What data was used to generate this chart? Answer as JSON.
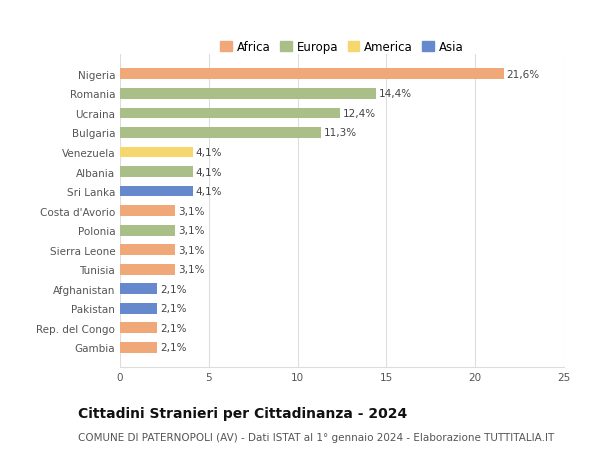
{
  "countries": [
    "Nigeria",
    "Romania",
    "Ucraina",
    "Bulgaria",
    "Venezuela",
    "Albania",
    "Sri Lanka",
    "Costa d'Avorio",
    "Polonia",
    "Sierra Leone",
    "Tunisia",
    "Afghanistan",
    "Pakistan",
    "Rep. del Congo",
    "Gambia"
  ],
  "values": [
    21.6,
    14.4,
    12.4,
    11.3,
    4.1,
    4.1,
    4.1,
    3.1,
    3.1,
    3.1,
    3.1,
    2.1,
    2.1,
    2.1,
    2.1
  ],
  "labels": [
    "21,6%",
    "14,4%",
    "12,4%",
    "11,3%",
    "4,1%",
    "4,1%",
    "4,1%",
    "3,1%",
    "3,1%",
    "3,1%",
    "3,1%",
    "2,1%",
    "2,1%",
    "2,1%",
    "2,1%"
  ],
  "continents": [
    "Africa",
    "Europa",
    "Europa",
    "Europa",
    "America",
    "Europa",
    "Asia",
    "Africa",
    "Europa",
    "Africa",
    "Africa",
    "Asia",
    "Asia",
    "Africa",
    "Africa"
  ],
  "continent_colors": {
    "Africa": "#F0A878",
    "Europa": "#AABF88",
    "America": "#F5D76E",
    "Asia": "#6688CC"
  },
  "legend_order": [
    "Africa",
    "Europa",
    "America",
    "Asia"
  ],
  "title": "Cittadini Stranieri per Cittadinanza - 2024",
  "subtitle": "COMUNE DI PATERNOPOLI (AV) - Dati ISTAT al 1° gennaio 2024 - Elaborazione TUTTITALIA.IT",
  "xlim": [
    0,
    25
  ],
  "xticks": [
    0,
    5,
    10,
    15,
    20,
    25
  ],
  "bg_color": "#ffffff",
  "grid_color": "#dddddd",
  "title_fontsize": 10,
  "subtitle_fontsize": 7.5,
  "label_fontsize": 7.5,
  "tick_fontsize": 7.5,
  "bar_height": 0.55
}
